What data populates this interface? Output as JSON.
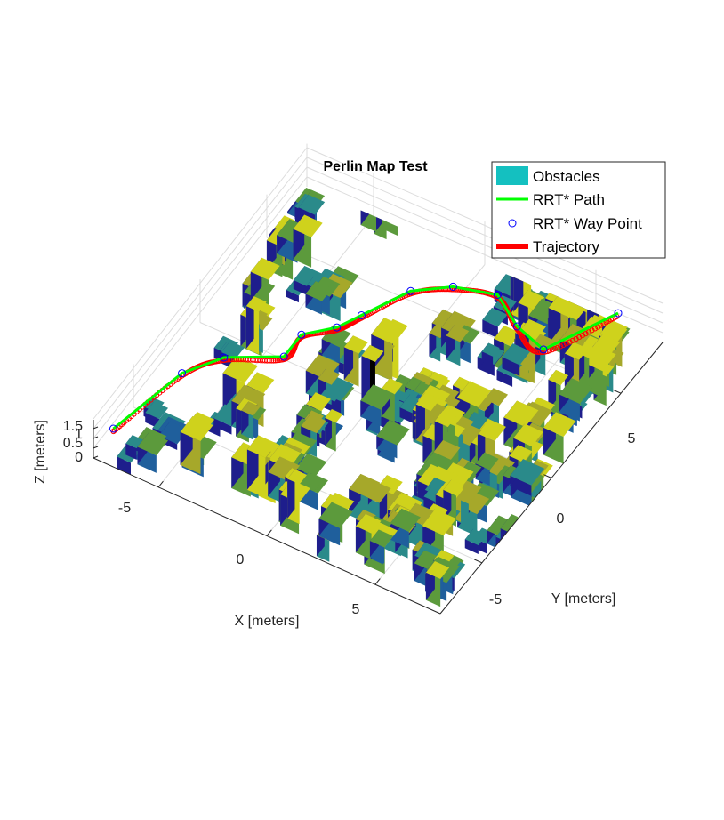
{
  "chart_data": {
    "type": "3d-scatter-path",
    "title": "Perlin Map Test",
    "xlabel": "X [meters]",
    "ylabel": "Y [meters]",
    "zlabel": "Z [meters]",
    "xlim": [
      -8,
      8
    ],
    "ylim": [
      -8,
      8
    ],
    "zlim": [
      0,
      2
    ],
    "x_ticks": [
      "-5",
      "0",
      "5"
    ],
    "y_ticks": [
      "-5",
      "0",
      "5"
    ],
    "z_ticks": [
      "0",
      "0.5",
      "1",
      "1.5"
    ],
    "grid": true,
    "legend_position": "top-right",
    "legend": [
      {
        "label": "Obstacles",
        "color": "#14c0c0",
        "marker": "patch"
      },
      {
        "label": "RRT* Path",
        "color": "#00ff00",
        "marker": "line"
      },
      {
        "label": "RRT* Way Point",
        "color": "#0000ff",
        "marker": "circle"
      },
      {
        "label": "Trajectory",
        "color": "#ff0000",
        "marker": "thick-line"
      }
    ],
    "series": [
      {
        "name": "RRT* Way Point",
        "x": [
          -8.0,
          -7.0,
          -6.0,
          -4.0,
          -4.0,
          -3.0,
          -2.5,
          -1.5,
          -0.2,
          1.5,
          3.0,
          4.5,
          6.0
        ],
        "y": [
          -6.5,
          -3.0,
          -1.5,
          -0.3,
          1.0,
          2.0,
          3.0,
          5.0,
          6.0,
          6.5,
          5.5,
          5.0,
          8.0
        ],
        "z": [
          0.2,
          0.5,
          0.5,
          0.5,
          0.5,
          0.5,
          0.5,
          0.5,
          0.5,
          0.5,
          0.5,
          0.5,
          0.5
        ]
      }
    ],
    "obstacle_colors": [
      "#1e1e8c",
      "#1f5f9c",
      "#2a8a8a",
      "#5c9a3c",
      "#a6a82a",
      "#cfd21c"
    ]
  }
}
